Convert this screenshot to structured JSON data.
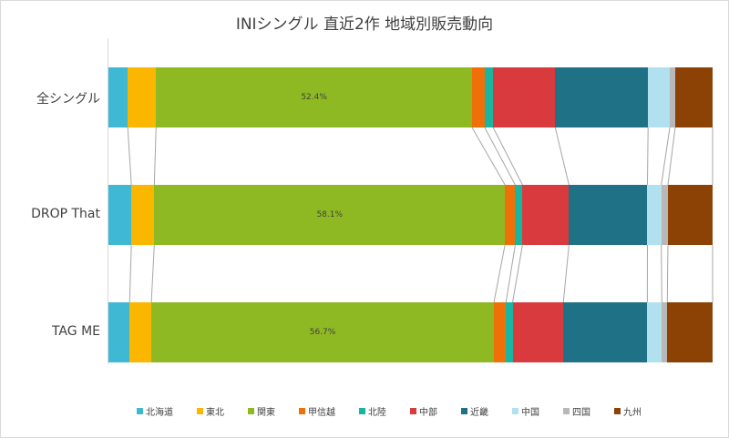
{
  "chart_data": {
    "type": "bar",
    "orientation": "horizontal",
    "stacked": "100%",
    "title": "INIシングル 直近2作 地域別販売動向",
    "categories": [
      "全シングル",
      "DROP That",
      "TAG ME"
    ],
    "series": [
      {
        "name": "北海道",
        "color": "#3fb8d4",
        "values": [
          3.2,
          3.8,
          3.5
        ]
      },
      {
        "name": "東北",
        "color": "#fbb700",
        "values": [
          4.7,
          3.8,
          3.6
        ]
      },
      {
        "name": "関東",
        "color": "#8fb923",
        "values": [
          52.4,
          58.1,
          56.7
        ]
      },
      {
        "name": "甲信越",
        "color": "#ef7008",
        "values": [
          2.1,
          1.7,
          2.0
        ]
      },
      {
        "name": "北陸",
        "color": "#1ab5a1",
        "values": [
          1.4,
          1.2,
          1.1
        ]
      },
      {
        "name": "中部",
        "color": "#d83a3e",
        "values": [
          10.3,
          7.7,
          8.4
        ]
      },
      {
        "name": "近畿",
        "color": "#1f7285",
        "values": [
          15.4,
          13.0,
          13.9
        ]
      },
      {
        "name": "中国",
        "color": "#b1e1ee",
        "values": [
          3.6,
          2.3,
          2.4
        ]
      },
      {
        "name": "四国",
        "color": "#b8b8b8",
        "values": [
          0.9,
          1.1,
          0.9
        ]
      },
      {
        "name": "九州",
        "color": "#8c4204",
        "values": [
          6.2,
          7.4,
          7.5
        ]
      }
    ],
    "data_labels": {
      "関東": [
        "52.4%",
        "58.1%",
        "56.7%"
      ]
    },
    "xlim": [
      0,
      100
    ],
    "grid": false,
    "series_lines": true,
    "legend_position": "bottom"
  }
}
